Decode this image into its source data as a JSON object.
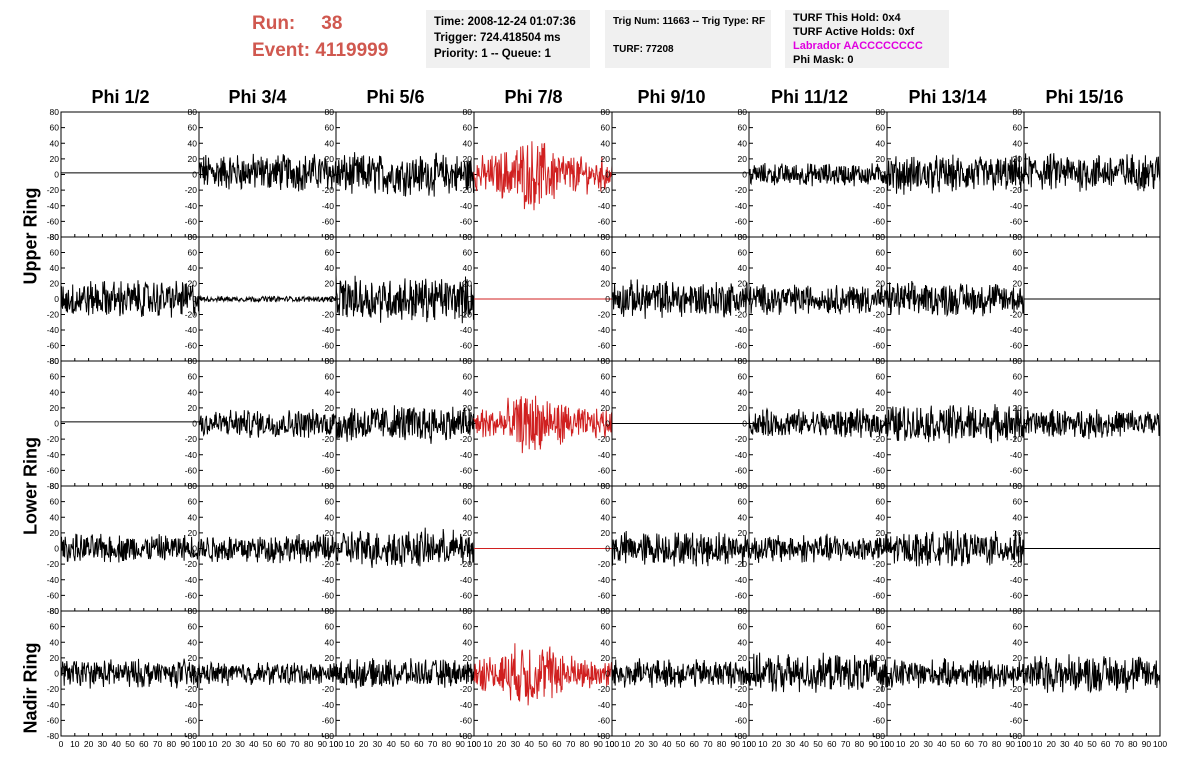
{
  "header": {
    "run_label": "Run:",
    "run_value": "38",
    "event_label": "Event:",
    "event_value": "4119999",
    "box1": [
      "Time: 2008-12-24 01:07:36",
      "Trigger: 724.418504 ms",
      "Priority: 1 -- Queue: 1"
    ],
    "box2": [
      "Trig Num: 11663 -- Trig Type: RF",
      "TURF: 77208"
    ],
    "box3": [
      "TURF This Hold: 0x4",
      "TURF Active Holds: 0xf",
      "Labrador AACCCCCCCC",
      "Phi Mask: 0"
    ]
  },
  "colors": {
    "trace": "#000000",
    "highlight": "#d02020",
    "magenta": "#e000e0",
    "run_text": "#d0584f"
  },
  "chart_data": {
    "type": "line",
    "columns": [
      "Phi 1/2",
      "Phi 3/4",
      "Phi 5/6",
      "Phi 7/8",
      "Phi 9/10",
      "Phi 11/12",
      "Phi 13/14",
      "Phi 15/16"
    ],
    "ring_labels": [
      {
        "text": "Upper Ring",
        "rows": [
          0,
          1
        ]
      },
      {
        "text": "Lower Ring",
        "rows": [
          2,
          3
        ]
      },
      {
        "text": "Nadir Ring",
        "rows": [
          4
        ]
      }
    ],
    "xlim": [
      0,
      100
    ],
    "ylim": [
      -80,
      80
    ],
    "x_ticks": [
      0,
      10,
      20,
      30,
      40,
      50,
      60,
      70,
      80,
      90,
      100
    ],
    "y_ticks": [
      -80,
      -60,
      -40,
      -20,
      0,
      20,
      40,
      60,
      80
    ],
    "highlight_column": 3,
    "panels": [
      [
        {
          "amp": 0,
          "off": 2
        },
        {
          "amp": 20,
          "off": 3
        },
        {
          "amp": 22,
          "off": 0
        },
        {
          "amp": 28,
          "off": 0
        },
        {
          "amp": 0,
          "off": 2
        },
        {
          "amp": 12,
          "off": 0
        },
        {
          "amp": 20,
          "off": 0
        },
        {
          "amp": 20,
          "off": 3
        }
      ],
      [
        {
          "amp": 20,
          "off": 0
        },
        {
          "amp": 3,
          "off": 0
        },
        {
          "amp": 24,
          "off": 0
        },
        {
          "amp": 0,
          "off": 0
        },
        {
          "amp": 20,
          "off": 0
        },
        {
          "amp": 16,
          "off": 0
        },
        {
          "amp": 18,
          "off": 0
        },
        {
          "amp": 0,
          "off": 0
        }
      ],
      [
        {
          "amp": 0,
          "off": 2
        },
        {
          "amp": 15,
          "off": 0
        },
        {
          "amp": 20,
          "off": 0
        },
        {
          "amp": 24,
          "off": 0
        },
        {
          "amp": 0,
          "off": 0
        },
        {
          "amp": 15,
          "off": 0
        },
        {
          "amp": 20,
          "off": 0
        },
        {
          "amp": 15,
          "off": 0
        }
      ],
      [
        {
          "amp": 15,
          "off": 0
        },
        {
          "amp": 15,
          "off": 0
        },
        {
          "amp": 20,
          "off": 0
        },
        {
          "amp": 0,
          "off": 0
        },
        {
          "amp": 18,
          "off": 0
        },
        {
          "amp": 15,
          "off": 0
        },
        {
          "amp": 18,
          "off": 0
        },
        {
          "amp": 0,
          "off": 0
        }
      ],
      [
        {
          "amp": 15,
          "off": 0
        },
        {
          "amp": 12,
          "off": 0
        },
        {
          "amp": 15,
          "off": 0
        },
        {
          "amp": 26,
          "off": 0
        },
        {
          "amp": 15,
          "off": 0
        },
        {
          "amp": 20,
          "off": 0
        },
        {
          "amp": 15,
          "off": 0
        },
        {
          "amp": 20,
          "off": 0
        }
      ]
    ]
  }
}
